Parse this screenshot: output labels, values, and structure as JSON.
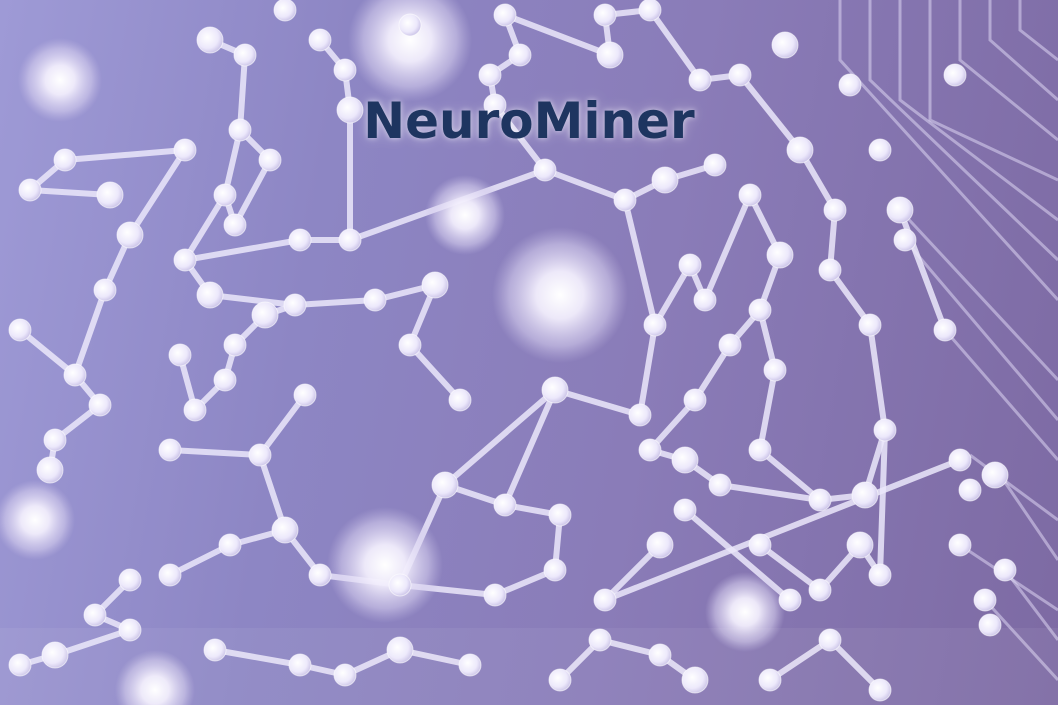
{
  "title": "NeuroMiner",
  "colors": {
    "title": "#1e3560",
    "background_left": "#9e9ad6",
    "background_right": "#7d6aa3",
    "node": "#f4f1ff",
    "link": "#e6e2f8"
  },
  "illustration": "molecular-network-graphic"
}
